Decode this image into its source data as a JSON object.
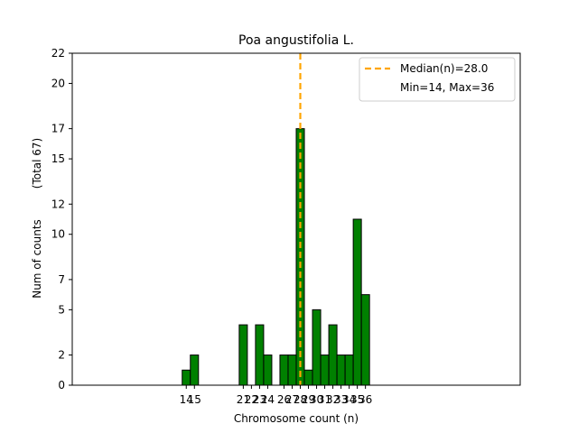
{
  "chart_data": {
    "type": "bar",
    "title": "Poa angustifolia L.",
    "xlabel": "Chromosome count (n)",
    "ylabel": "Num of counts",
    "ylabel_note": "(Total 67)",
    "xlim": [
      0,
      55
    ],
    "ylim": [
      0,
      22
    ],
    "yticks": [
      0,
      2,
      5,
      7,
      10,
      12,
      15,
      17,
      20,
      22
    ],
    "xticks": [
      14,
      15,
      21,
      22,
      23,
      24,
      26,
      27,
      28,
      29,
      30,
      31,
      32,
      33,
      34,
      35,
      36
    ],
    "xtick_labels": [
      "14",
      "15",
      "21",
      "22",
      "23",
      "24",
      "26",
      "27",
      "28",
      "29",
      "30",
      "31",
      "32",
      "33",
      "34",
      "35",
      "36"
    ],
    "bins": [
      {
        "x": 14,
        "count": 1
      },
      {
        "x": 15,
        "count": 2
      },
      {
        "x": 16,
        "count": 0
      },
      {
        "x": 17,
        "count": 0
      },
      {
        "x": 18,
        "count": 0
      },
      {
        "x": 19,
        "count": 0
      },
      {
        "x": 20,
        "count": 0
      },
      {
        "x": 21,
        "count": 4
      },
      {
        "x": 22,
        "count": 0
      },
      {
        "x": 23,
        "count": 4
      },
      {
        "x": 24,
        "count": 2
      },
      {
        "x": 25,
        "count": 0
      },
      {
        "x": 26,
        "count": 2
      },
      {
        "x": 27,
        "count": 2
      },
      {
        "x": 28,
        "count": 17
      },
      {
        "x": 29,
        "count": 1
      },
      {
        "x": 30,
        "count": 5
      },
      {
        "x": 31,
        "count": 2
      },
      {
        "x": 32,
        "count": 4
      },
      {
        "x": 33,
        "count": 2
      },
      {
        "x": 34,
        "count": 2
      },
      {
        "x": 35,
        "count": 11
      },
      {
        "x": 36,
        "count": 6
      },
      {
        "x": 37,
        "count": 0
      },
      {
        "x": 38,
        "count": 0
      },
      {
        "x": 39,
        "count": 0
      }
    ],
    "median": 28.0,
    "legend": {
      "placement": "top-right",
      "median_label": "Median(n)=28.0",
      "range_label": "Min=14, Max=36"
    },
    "colors": {
      "bar_fill": "#008000",
      "bar_edge": "#000000",
      "median_line": "#ffa500"
    },
    "grid": false
  }
}
